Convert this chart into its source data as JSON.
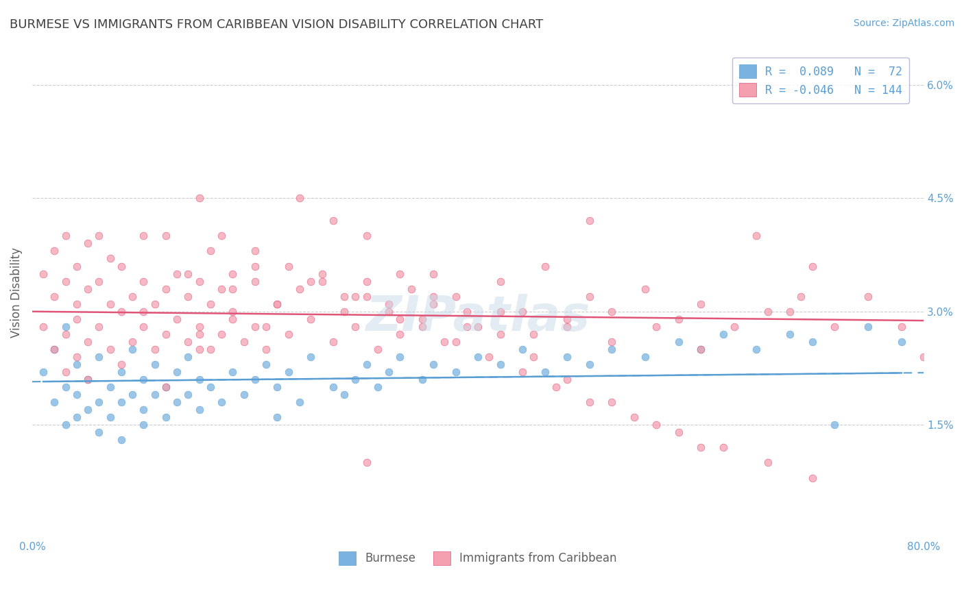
{
  "title": "BURMESE VS IMMIGRANTS FROM CARIBBEAN VISION DISABILITY CORRELATION CHART",
  "source_text": "Source: ZipAtlas.com",
  "xlabel": "",
  "ylabel": "Vision Disability",
  "legend_label_1": "Burmese",
  "legend_label_2": "Immigrants from Caribbean",
  "r1": 0.089,
  "n1": 72,
  "r2": -0.046,
  "n2": 144,
  "color1": "#7ab3e0",
  "color2": "#f4a0b0",
  "trendline1_color": "#5a9fd4",
  "trendline2_color": "#e05577",
  "xlim": [
    0.0,
    0.8
  ],
  "ylim": [
    0.0,
    0.065
  ],
  "yticks": [
    0.015,
    0.03,
    0.045,
    0.06
  ],
  "ytick_labels": [
    "1.5%",
    "3.0%",
    "4.5%",
    "6.0%"
  ],
  "xticks": [
    0.0,
    0.1,
    0.2,
    0.3,
    0.4,
    0.5,
    0.6,
    0.7,
    0.8
  ],
  "xtick_labels": [
    "0.0%",
    "",
    "",
    "",
    "",
    "",
    "",
    "",
    "80.0%"
  ],
  "watermark": "ZIPatlas",
  "watermark_color": "#c8d8e8",
  "background_color": "#ffffff",
  "grid_color": "#cccccc",
  "tick_color": "#5a9fd4",
  "title_color": "#404040",
  "burmese_x": [
    0.01,
    0.02,
    0.02,
    0.03,
    0.03,
    0.03,
    0.04,
    0.04,
    0.04,
    0.05,
    0.05,
    0.06,
    0.06,
    0.06,
    0.07,
    0.07,
    0.08,
    0.08,
    0.08,
    0.09,
    0.09,
    0.1,
    0.1,
    0.1,
    0.11,
    0.11,
    0.12,
    0.12,
    0.13,
    0.13,
    0.14,
    0.14,
    0.15,
    0.15,
    0.16,
    0.17,
    0.18,
    0.19,
    0.2,
    0.21,
    0.22,
    0.22,
    0.23,
    0.24,
    0.25,
    0.27,
    0.28,
    0.29,
    0.3,
    0.31,
    0.32,
    0.33,
    0.35,
    0.36,
    0.38,
    0.4,
    0.42,
    0.44,
    0.46,
    0.48,
    0.5,
    0.52,
    0.55,
    0.58,
    0.6,
    0.62,
    0.65,
    0.68,
    0.7,
    0.72,
    0.75,
    0.78
  ],
  "burmese_y": [
    0.022,
    0.018,
    0.025,
    0.02,
    0.015,
    0.028,
    0.019,
    0.023,
    0.016,
    0.021,
    0.017,
    0.024,
    0.018,
    0.014,
    0.02,
    0.016,
    0.022,
    0.018,
    0.013,
    0.019,
    0.025,
    0.021,
    0.017,
    0.015,
    0.023,
    0.019,
    0.02,
    0.016,
    0.022,
    0.018,
    0.019,
    0.024,
    0.021,
    0.017,
    0.02,
    0.018,
    0.022,
    0.019,
    0.021,
    0.023,
    0.02,
    0.016,
    0.022,
    0.018,
    0.024,
    0.02,
    0.019,
    0.021,
    0.023,
    0.02,
    0.022,
    0.024,
    0.021,
    0.023,
    0.022,
    0.024,
    0.023,
    0.025,
    0.022,
    0.024,
    0.023,
    0.025,
    0.024,
    0.026,
    0.025,
    0.027,
    0.025,
    0.027,
    0.026,
    0.015,
    0.028,
    0.026
  ],
  "caribbean_x": [
    0.01,
    0.01,
    0.02,
    0.02,
    0.02,
    0.03,
    0.03,
    0.03,
    0.03,
    0.04,
    0.04,
    0.04,
    0.04,
    0.05,
    0.05,
    0.05,
    0.05,
    0.06,
    0.06,
    0.06,
    0.07,
    0.07,
    0.07,
    0.08,
    0.08,
    0.08,
    0.09,
    0.09,
    0.1,
    0.1,
    0.1,
    0.11,
    0.11,
    0.12,
    0.12,
    0.13,
    0.13,
    0.14,
    0.14,
    0.15,
    0.15,
    0.16,
    0.16,
    0.17,
    0.17,
    0.18,
    0.18,
    0.19,
    0.2,
    0.2,
    0.21,
    0.22,
    0.23,
    0.24,
    0.25,
    0.26,
    0.27,
    0.28,
    0.29,
    0.3,
    0.31,
    0.32,
    0.33,
    0.34,
    0.35,
    0.36,
    0.37,
    0.38,
    0.4,
    0.42,
    0.44,
    0.46,
    0.48,
    0.5,
    0.52,
    0.55,
    0.58,
    0.6,
    0.63,
    0.66,
    0.69,
    0.72,
    0.1,
    0.12,
    0.14,
    0.16,
    0.18,
    0.2,
    0.22,
    0.25,
    0.28,
    0.3,
    0.33,
    0.36,
    0.39,
    0.42,
    0.45,
    0.48,
    0.52,
    0.56,
    0.6,
    0.15,
    0.17,
    0.2,
    0.23,
    0.26,
    0.29,
    0.32,
    0.35,
    0.38,
    0.41,
    0.44,
    0.47,
    0.5,
    0.54,
    0.58,
    0.62,
    0.66,
    0.7,
    0.15,
    0.18,
    0.21,
    0.24,
    0.27,
    0.3,
    0.33,
    0.36,
    0.39,
    0.42,
    0.45,
    0.48,
    0.52,
    0.56,
    0.6,
    0.65,
    0.7,
    0.75,
    0.78,
    0.8,
    0.12,
    0.15,
    0.3,
    0.5,
    0.68
  ],
  "caribbean_y": [
    0.028,
    0.035,
    0.025,
    0.032,
    0.038,
    0.027,
    0.034,
    0.04,
    0.022,
    0.029,
    0.036,
    0.024,
    0.031,
    0.026,
    0.033,
    0.039,
    0.021,
    0.028,
    0.034,
    0.04,
    0.025,
    0.031,
    0.037,
    0.023,
    0.03,
    0.036,
    0.026,
    0.032,
    0.028,
    0.034,
    0.04,
    0.025,
    0.031,
    0.027,
    0.033,
    0.029,
    0.035,
    0.026,
    0.032,
    0.028,
    0.034,
    0.025,
    0.031,
    0.027,
    0.033,
    0.029,
    0.035,
    0.026,
    0.028,
    0.034,
    0.025,
    0.031,
    0.027,
    0.033,
    0.029,
    0.035,
    0.026,
    0.032,
    0.028,
    0.034,
    0.025,
    0.031,
    0.027,
    0.033,
    0.029,
    0.035,
    0.026,
    0.032,
    0.028,
    0.034,
    0.03,
    0.036,
    0.028,
    0.032,
    0.03,
    0.033,
    0.029,
    0.031,
    0.028,
    0.03,
    0.032,
    0.028,
    0.03,
    0.04,
    0.035,
    0.038,
    0.033,
    0.036,
    0.031,
    0.034,
    0.03,
    0.032,
    0.029,
    0.031,
    0.028,
    0.03,
    0.027,
    0.029,
    0.026,
    0.028,
    0.025,
    0.027,
    0.04,
    0.038,
    0.036,
    0.034,
    0.032,
    0.03,
    0.028,
    0.026,
    0.024,
    0.022,
    0.02,
    0.018,
    0.016,
    0.014,
    0.012,
    0.01,
    0.008,
    0.025,
    0.03,
    0.028,
    0.045,
    0.042,
    0.04,
    0.035,
    0.032,
    0.03,
    0.027,
    0.024,
    0.021,
    0.018,
    0.015,
    0.012,
    0.04,
    0.036,
    0.032,
    0.028,
    0.024,
    0.02,
    0.045,
    0.01,
    0.042,
    0.03
  ]
}
